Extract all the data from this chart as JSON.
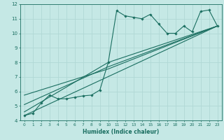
{
  "xlabel": "Humidex (Indice chaleur)",
  "xlim": [
    -0.5,
    23.5
  ],
  "ylim": [
    4,
    12
  ],
  "xticks": [
    0,
    1,
    2,
    3,
    4,
    5,
    6,
    7,
    8,
    9,
    10,
    11,
    12,
    13,
    14,
    15,
    16,
    17,
    18,
    19,
    20,
    21,
    22,
    23
  ],
  "yticks": [
    4,
    5,
    6,
    7,
    8,
    9,
    10,
    11,
    12
  ],
  "bg_color": "#c5e8e5",
  "grid_color": "#b0d8d5",
  "line_color": "#1a6e60",
  "line1_x": [
    0,
    1,
    2,
    3,
    4,
    5,
    6,
    7,
    8,
    9,
    10,
    11,
    12,
    13,
    14,
    15,
    16,
    17,
    18,
    19,
    20,
    21,
    22,
    23
  ],
  "line1_y": [
    4.35,
    4.5,
    5.2,
    5.75,
    5.5,
    5.5,
    5.6,
    5.7,
    5.75,
    6.1,
    8.0,
    11.55,
    11.2,
    11.1,
    11.0,
    11.3,
    10.65,
    10.0,
    10.0,
    10.5,
    10.1,
    11.5,
    11.6,
    10.5
  ],
  "line2_x": [
    0,
    23
  ],
  "line2_y": [
    4.35,
    10.5
  ],
  "line3_x": [
    0,
    10,
    23
  ],
  "line3_y": [
    4.6,
    8.0,
    10.5
  ],
  "line4_x": [
    0,
    10,
    23
  ],
  "line4_y": [
    5.1,
    7.7,
    10.5
  ],
  "line5_x": [
    0,
    10,
    23
  ],
  "line5_y": [
    5.75,
    7.55,
    10.5
  ]
}
